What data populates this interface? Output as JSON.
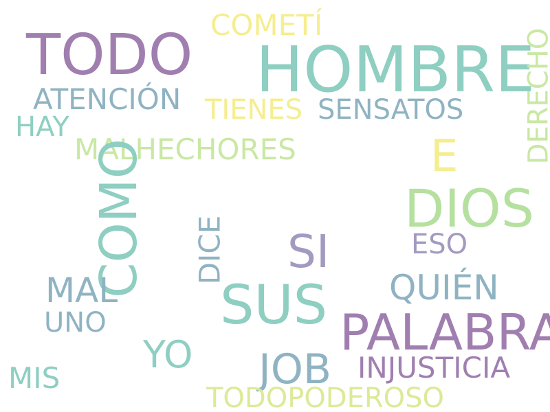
{
  "words": [
    {
      "text": "TODO",
      "color": "#a07fb0"
    },
    {
      "text": "COMETÍ",
      "color": "#f5ee90"
    },
    {
      "text": "HOMBRE",
      "color": "#8ecfc2"
    },
    {
      "text": "DERECHO",
      "color": "#c9e8a4"
    },
    {
      "text": "ATENCIÓN",
      "color": "#8fb3c2"
    },
    {
      "text": "TIENES",
      "color": "#f5ee90"
    },
    {
      "text": "SENSATOS",
      "color": "#8fb3c2"
    },
    {
      "text": "HAY",
      "color": "#8ecfc2"
    },
    {
      "text": "MALHECHORES",
      "color": "#c9e8a4"
    },
    {
      "text": "E",
      "color": "#f5ee90"
    },
    {
      "text": "COMO",
      "color": "#8ecfc2"
    },
    {
      "text": "DIOS",
      "color": "#b5e0a0"
    },
    {
      "text": "DICE",
      "color": "#8fb3c2"
    },
    {
      "text": "SI",
      "color": "#a39ac0"
    },
    {
      "text": "ESO",
      "color": "#a39ac0"
    },
    {
      "text": "MAL",
      "color": "#8fb3c2"
    },
    {
      "text": "QUIÉN",
      "color": "#8fb3c2"
    },
    {
      "text": "SUS",
      "color": "#8ecfc2"
    },
    {
      "text": "UNO",
      "color": "#8fb3c2"
    },
    {
      "text": "PALABRA",
      "color": "#a07fb0"
    },
    {
      "text": "YO",
      "color": "#8ecfc2"
    },
    {
      "text": "JOB",
      "color": "#8fb3c2"
    },
    {
      "text": "INJUSTICIA",
      "color": "#a07fb0"
    },
    {
      "text": "MIS",
      "color": "#8ecfc2"
    },
    {
      "text": "TODOPODEROSO",
      "color": "#dcea98"
    }
  ]
}
